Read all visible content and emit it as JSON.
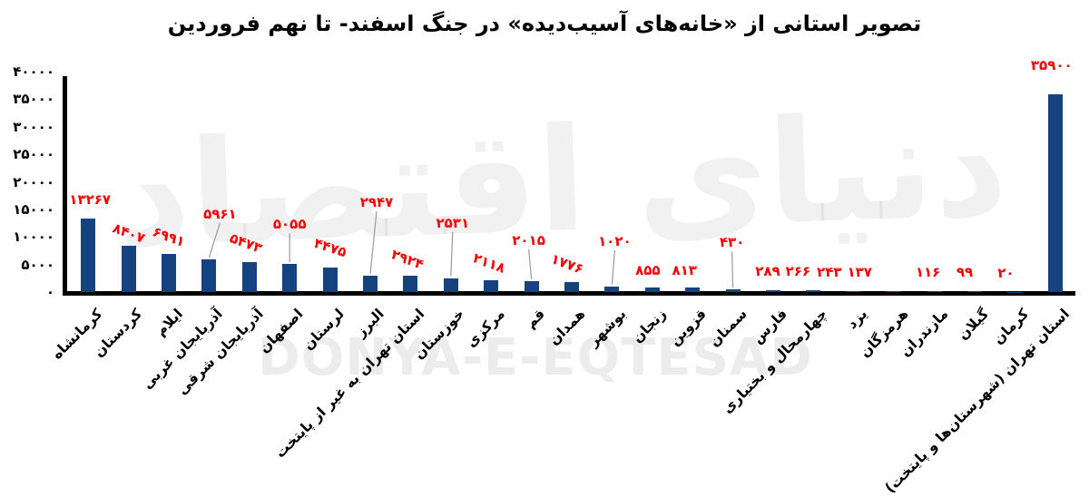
{
  "title": "تصویر استانی از «خانه‌های آسیب‌دیده» در جنگ اسفند- تا نهم فروردین",
  "watermarks": {
    "farsi": "دنیای اقتصاد",
    "latin": "DONYA-E-EQTESAD"
  },
  "colors": {
    "bar": "#164280",
    "value_label": "#f70000",
    "axis": "#000000",
    "leader_line": "#9a9a9a",
    "watermark_latin": "#ececec"
  },
  "chart_data": {
    "type": "bar",
    "title": "تصویر استانی از «خانه‌های آسیب‌دیده» در جنگ اسفند- تا نهم فروردین",
    "xlabel": "",
    "ylabel": "",
    "ylim": [
      0,
      40000
    ],
    "grid": false,
    "legend": false,
    "y_ticks": {
      "values": [
        0,
        5000,
        10000,
        15000,
        20000,
        25000,
        30000,
        35000,
        40000
      ],
      "labels": [
        "۰",
        "۵۰۰۰",
        "۱۰۰۰۰",
        "۱۵۰۰۰",
        "۲۰۰۰۰",
        "۲۵۰۰۰",
        "۳۰۰۰۰",
        "۳۵۰۰۰",
        "۴۰۰۰۰"
      ]
    },
    "categories": [
      "کرمانشاه",
      "کردستان",
      "ایلام",
      "آذربایجان غربی",
      "آذربایجان شرقی",
      "اصفهان",
      "لرستان",
      "البرز",
      "استان تهران به غیر از پایتخت",
      "خوزستان",
      "مرکزی",
      "قم",
      "همدان",
      "بوشهر",
      "زنجان",
      "قزوین",
      "سمنان",
      "فارس",
      "چهارمحال و بختیاری",
      "یزد",
      "هرمزگان",
      "مازندران",
      "گیلان",
      "کرمان",
      "استان تهران (شهرستان‌ها و پایتخت)"
    ],
    "values": [
      13267,
      8407,
      6991,
      5961,
      5473,
      5055,
      4475,
      2947,
      2924,
      2531,
      2118,
      2015,
      1776,
      1020,
      855,
      813,
      430,
      289,
      266,
      243,
      137,
      116,
      99,
      20,
      35900
    ],
    "value_labels": [
      "۱۳۲۶۷",
      "۸۴۰۷",
      "۶۹۹۱",
      "۵۹۶۱",
      "۵۴۷۳",
      "۵۰۵۵",
      "۴۴۷۵",
      "۲۹۴۷",
      "۲۹۲۴",
      "۲۵۳۱",
      "۲۱۱۸",
      "۲۰۱۵",
      "۱۷۷۶",
      "۱۰۲۰",
      "۸۵۵",
      "۸۱۳",
      "۴۳۰",
      "۲۸۹",
      "۲۶۶",
      "۲۴۳",
      "۱۳۷",
      "۱۱۶",
      "۹۹",
      "۲۰",
      "۳۵۹۰۰"
    ],
    "label_layout": [
      {
        "rot": 0,
        "raise": 21,
        "dx": 2,
        "leader": false
      },
      {
        "rot": 20,
        "raise": 14,
        "dx": 0,
        "leader": false
      },
      {
        "rot": 20,
        "raise": 19,
        "dx": 0,
        "leader": false
      },
      {
        "rot": 0,
        "raise": 50,
        "dx": 12,
        "leader": true
      },
      {
        "rot": 20,
        "raise": 21,
        "dx": -4,
        "leader": false
      },
      {
        "rot": 0,
        "raise": 44,
        "dx": 0,
        "leader": true
      },
      {
        "rot": 18,
        "raise": 22,
        "dx": 0,
        "leader": false
      },
      {
        "rot": 0,
        "raise": 81,
        "dx": 7,
        "leader": true
      },
      {
        "rot": 20,
        "raise": 18,
        "dx": -3,
        "leader": false
      },
      {
        "rot": 0,
        "raise": 61,
        "dx": 2,
        "leader": true
      },
      {
        "rot": 20,
        "raise": 19,
        "dx": -2,
        "leader": false
      },
      {
        "rot": 0,
        "raise": 45,
        "dx": -3,
        "leader": true
      },
      {
        "rot": 20,
        "raise": 20,
        "dx": -5,
        "leader": false
      },
      {
        "rot": 0,
        "raise": 50,
        "dx": 3,
        "leader": true
      },
      {
        "rot": 0,
        "raise": 19,
        "dx": -5,
        "leader": false
      },
      {
        "rot": 0,
        "raise": 19,
        "dx": -9,
        "leader": false
      },
      {
        "rot": 0,
        "raise": 52,
        "dx": -1,
        "leader": true
      },
      {
        "rot": 0,
        "raise": 21,
        "dx": -6,
        "leader": false
      },
      {
        "rot": 0,
        "raise": 21,
        "dx": -17,
        "leader": false
      },
      {
        "rot": 0,
        "raise": 21,
        "dx": -27,
        "leader": false
      },
      {
        "rot": 0,
        "raise": 21,
        "dx": -38,
        "leader": false
      },
      {
        "rot": 0,
        "raise": 21,
        "dx": -7,
        "leader": false
      },
      {
        "rot": 0,
        "raise": 21,
        "dx": -11,
        "leader": false
      },
      {
        "rot": 0,
        "raise": 21,
        "dx": -10,
        "leader": false
      },
      {
        "rot": 0,
        "raise": 32,
        "dx": -4,
        "leader": false
      }
    ]
  }
}
